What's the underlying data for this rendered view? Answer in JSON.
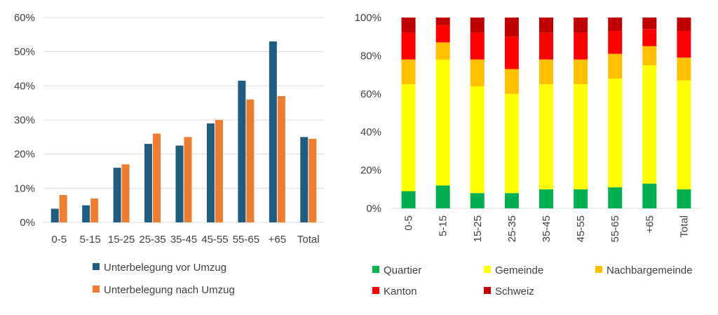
{
  "chart_data": [
    {
      "type": "bar",
      "title": "",
      "categories": [
        "0-5",
        "5-15",
        "15-25",
        "25-35",
        "35-45",
        "45-55",
        "55-65",
        "+65",
        "Total"
      ],
      "series": [
        {
          "name": "Unterbelegung vor Umzug",
          "color": "#1f5c7f",
          "values": [
            4,
            5,
            16,
            23,
            22.5,
            29,
            41.5,
            53,
            25
          ]
        },
        {
          "name": "Unterbelegung nach Umzug",
          "color": "#ed7d31",
          "values": [
            8,
            7,
            17,
            26,
            25,
            30,
            36,
            37,
            24.5
          ]
        }
      ],
      "ylim": [
        0,
        60
      ],
      "yticks": [
        "0%",
        "10%",
        "20%",
        "30%",
        "40%",
        "50%",
        "60%"
      ],
      "grid": true,
      "legend_position": "bottom"
    },
    {
      "type": "bar",
      "stacked": true,
      "title": "",
      "categories": [
        "0-5",
        "5-15",
        "15-25",
        "25-35",
        "35-45",
        "45-55",
        "55-65",
        "+65",
        "Total"
      ],
      "series": [
        {
          "name": "Quartier",
          "color": "#00b050",
          "values": [
            9,
            12,
            8,
            8,
            10,
            10,
            11,
            13,
            10
          ]
        },
        {
          "name": "Gemeinde",
          "color": "#ffff00",
          "values": [
            56,
            66,
            56,
            52,
            55,
            55,
            57,
            62,
            57
          ]
        },
        {
          "name": "Nachbargemeinde",
          "color": "#ffc000",
          "values": [
            13,
            9,
            14,
            13,
            13,
            13,
            13,
            10,
            12
          ]
        },
        {
          "name": "Kanton",
          "color": "#ff0000",
          "values": [
            14,
            9,
            14,
            17,
            14,
            14,
            12,
            9,
            14
          ]
        },
        {
          "name": "Schweiz",
          "color": "#c00000",
          "values": [
            8,
            4,
            8,
            10,
            8,
            8,
            7,
            6,
            7
          ]
        }
      ],
      "ylim": [
        0,
        100
      ],
      "yticks": [
        "0%",
        "20%",
        "40%",
        "60%",
        "80%",
        "100%"
      ],
      "grid": false,
      "legend_position": "bottom"
    }
  ]
}
